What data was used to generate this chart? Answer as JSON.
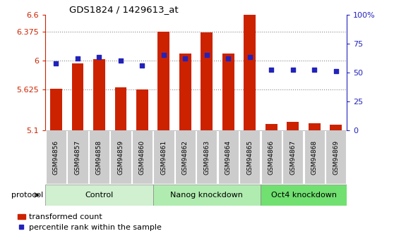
{
  "title": "GDS1824 / 1429613_at",
  "samples": [
    "GSM94856",
    "GSM94857",
    "GSM94858",
    "GSM94859",
    "GSM94860",
    "GSM94861",
    "GSM94862",
    "GSM94863",
    "GSM94864",
    "GSM94865",
    "GSM94866",
    "GSM94867",
    "GSM94868",
    "GSM94869"
  ],
  "transformed_count": [
    5.64,
    5.97,
    6.02,
    5.65,
    5.63,
    6.375,
    6.09,
    6.37,
    6.09,
    6.63,
    5.18,
    5.21,
    5.19,
    5.17
  ],
  "percentile_rank": [
    58,
    62,
    63,
    60,
    56,
    65,
    62,
    65,
    62,
    63,
    52,
    52,
    52,
    51
  ],
  "groups": [
    {
      "label": "Control",
      "start": 0,
      "end": 5,
      "color": "#d0f0d0"
    },
    {
      "label": "Nanog knockdown",
      "start": 5,
      "end": 10,
      "color": "#b0ecb0"
    },
    {
      "label": "Oct4 knockdown",
      "start": 10,
      "end": 14,
      "color": "#70e070"
    }
  ],
  "ylim_left": [
    5.1,
    6.6
  ],
  "ylim_right": [
    0,
    100
  ],
  "yticks_left": [
    5.1,
    5.625,
    6.0,
    6.375,
    6.6
  ],
  "yticks_right": [
    0,
    25,
    50,
    75,
    100
  ],
  "ytick_labels_left": [
    "5.1",
    "5.625",
    "6",
    "6.375",
    "6.6"
  ],
  "ytick_labels_right": [
    "0",
    "25",
    "50",
    "75",
    "100%"
  ],
  "bar_color": "#cc2200",
  "dot_color": "#2222bb",
  "bar_width": 0.55,
  "grid_color": "#888888",
  "xtick_bg": "#cccccc",
  "protocol_label": "protocol",
  "legend_items": [
    "transformed count",
    "percentile rank within the sample"
  ],
  "figsize": [
    5.58,
    3.45
  ],
  "dpi": 100
}
